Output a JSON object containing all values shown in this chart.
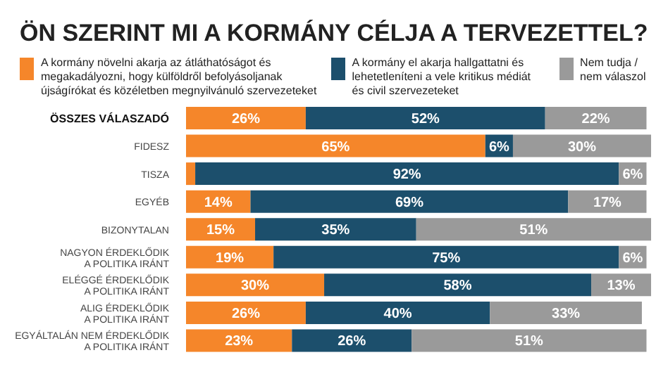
{
  "chart_data": {
    "type": "bar",
    "orientation": "horizontal",
    "stacked": true,
    "title": "ÖN SZERINT MI A KORMÁNY CÉLJA A TERVEZETTEL?",
    "categories": [
      "ÖSSZES VÁLASZADÓ",
      "FIDESZ",
      "TISZA",
      "EGYÉB",
      "BIZONYTALAN",
      "NAGYON ÉRDEKLŐDIK\nA POLITIKA IRÁNT",
      "ELÉGGÉ ÉRDEKLŐDIK\nA POLITIKA IRÁNT",
      "ALIG ÉRDEKLŐDIK\nA POLITIKA IRÁNT",
      "EGYÁLTALÁN NEM ÉRDEKLŐDIK\nA POLITIKA IRÁNT"
    ],
    "series": [
      {
        "name": "A kormány növelni akarja az átláthatóságot és megakadályozni, hogy külföldről befolyásoljanak újságírókat és közéletben megnyilvánuló szervezeteket",
        "color": "#f5862a",
        "values": [
          26,
          65,
          2,
          14,
          15,
          19,
          30,
          26,
          23
        ],
        "value_labels": [
          "26%",
          "65%",
          null,
          "14%",
          "15%",
          "19%",
          "30%",
          "26%",
          "23%"
        ]
      },
      {
        "name": "A kormány el akarja hallgattatni és lehetetleníteni a vele kritikus médiát és civil szervezeteket",
        "color": "#1c4f6c",
        "values": [
          52,
          6,
          92,
          69,
          35,
          75,
          58,
          40,
          26
        ],
        "value_labels": [
          "52%",
          "6%",
          "92%",
          "69%",
          "35%",
          "75%",
          "58%",
          "40%",
          "26%"
        ]
      },
      {
        "name": "Nem tudja / nem válaszol",
        "color": "#9a9a9a",
        "values": [
          22,
          30,
          6,
          17,
          51,
          6,
          13,
          33,
          51
        ],
        "value_labels": [
          "22%",
          "30%",
          "6%",
          "17%",
          "51%",
          "6%",
          "13%",
          "33%",
          "51%"
        ]
      }
    ],
    "legend": "top",
    "tick_labels": "y"
  }
}
